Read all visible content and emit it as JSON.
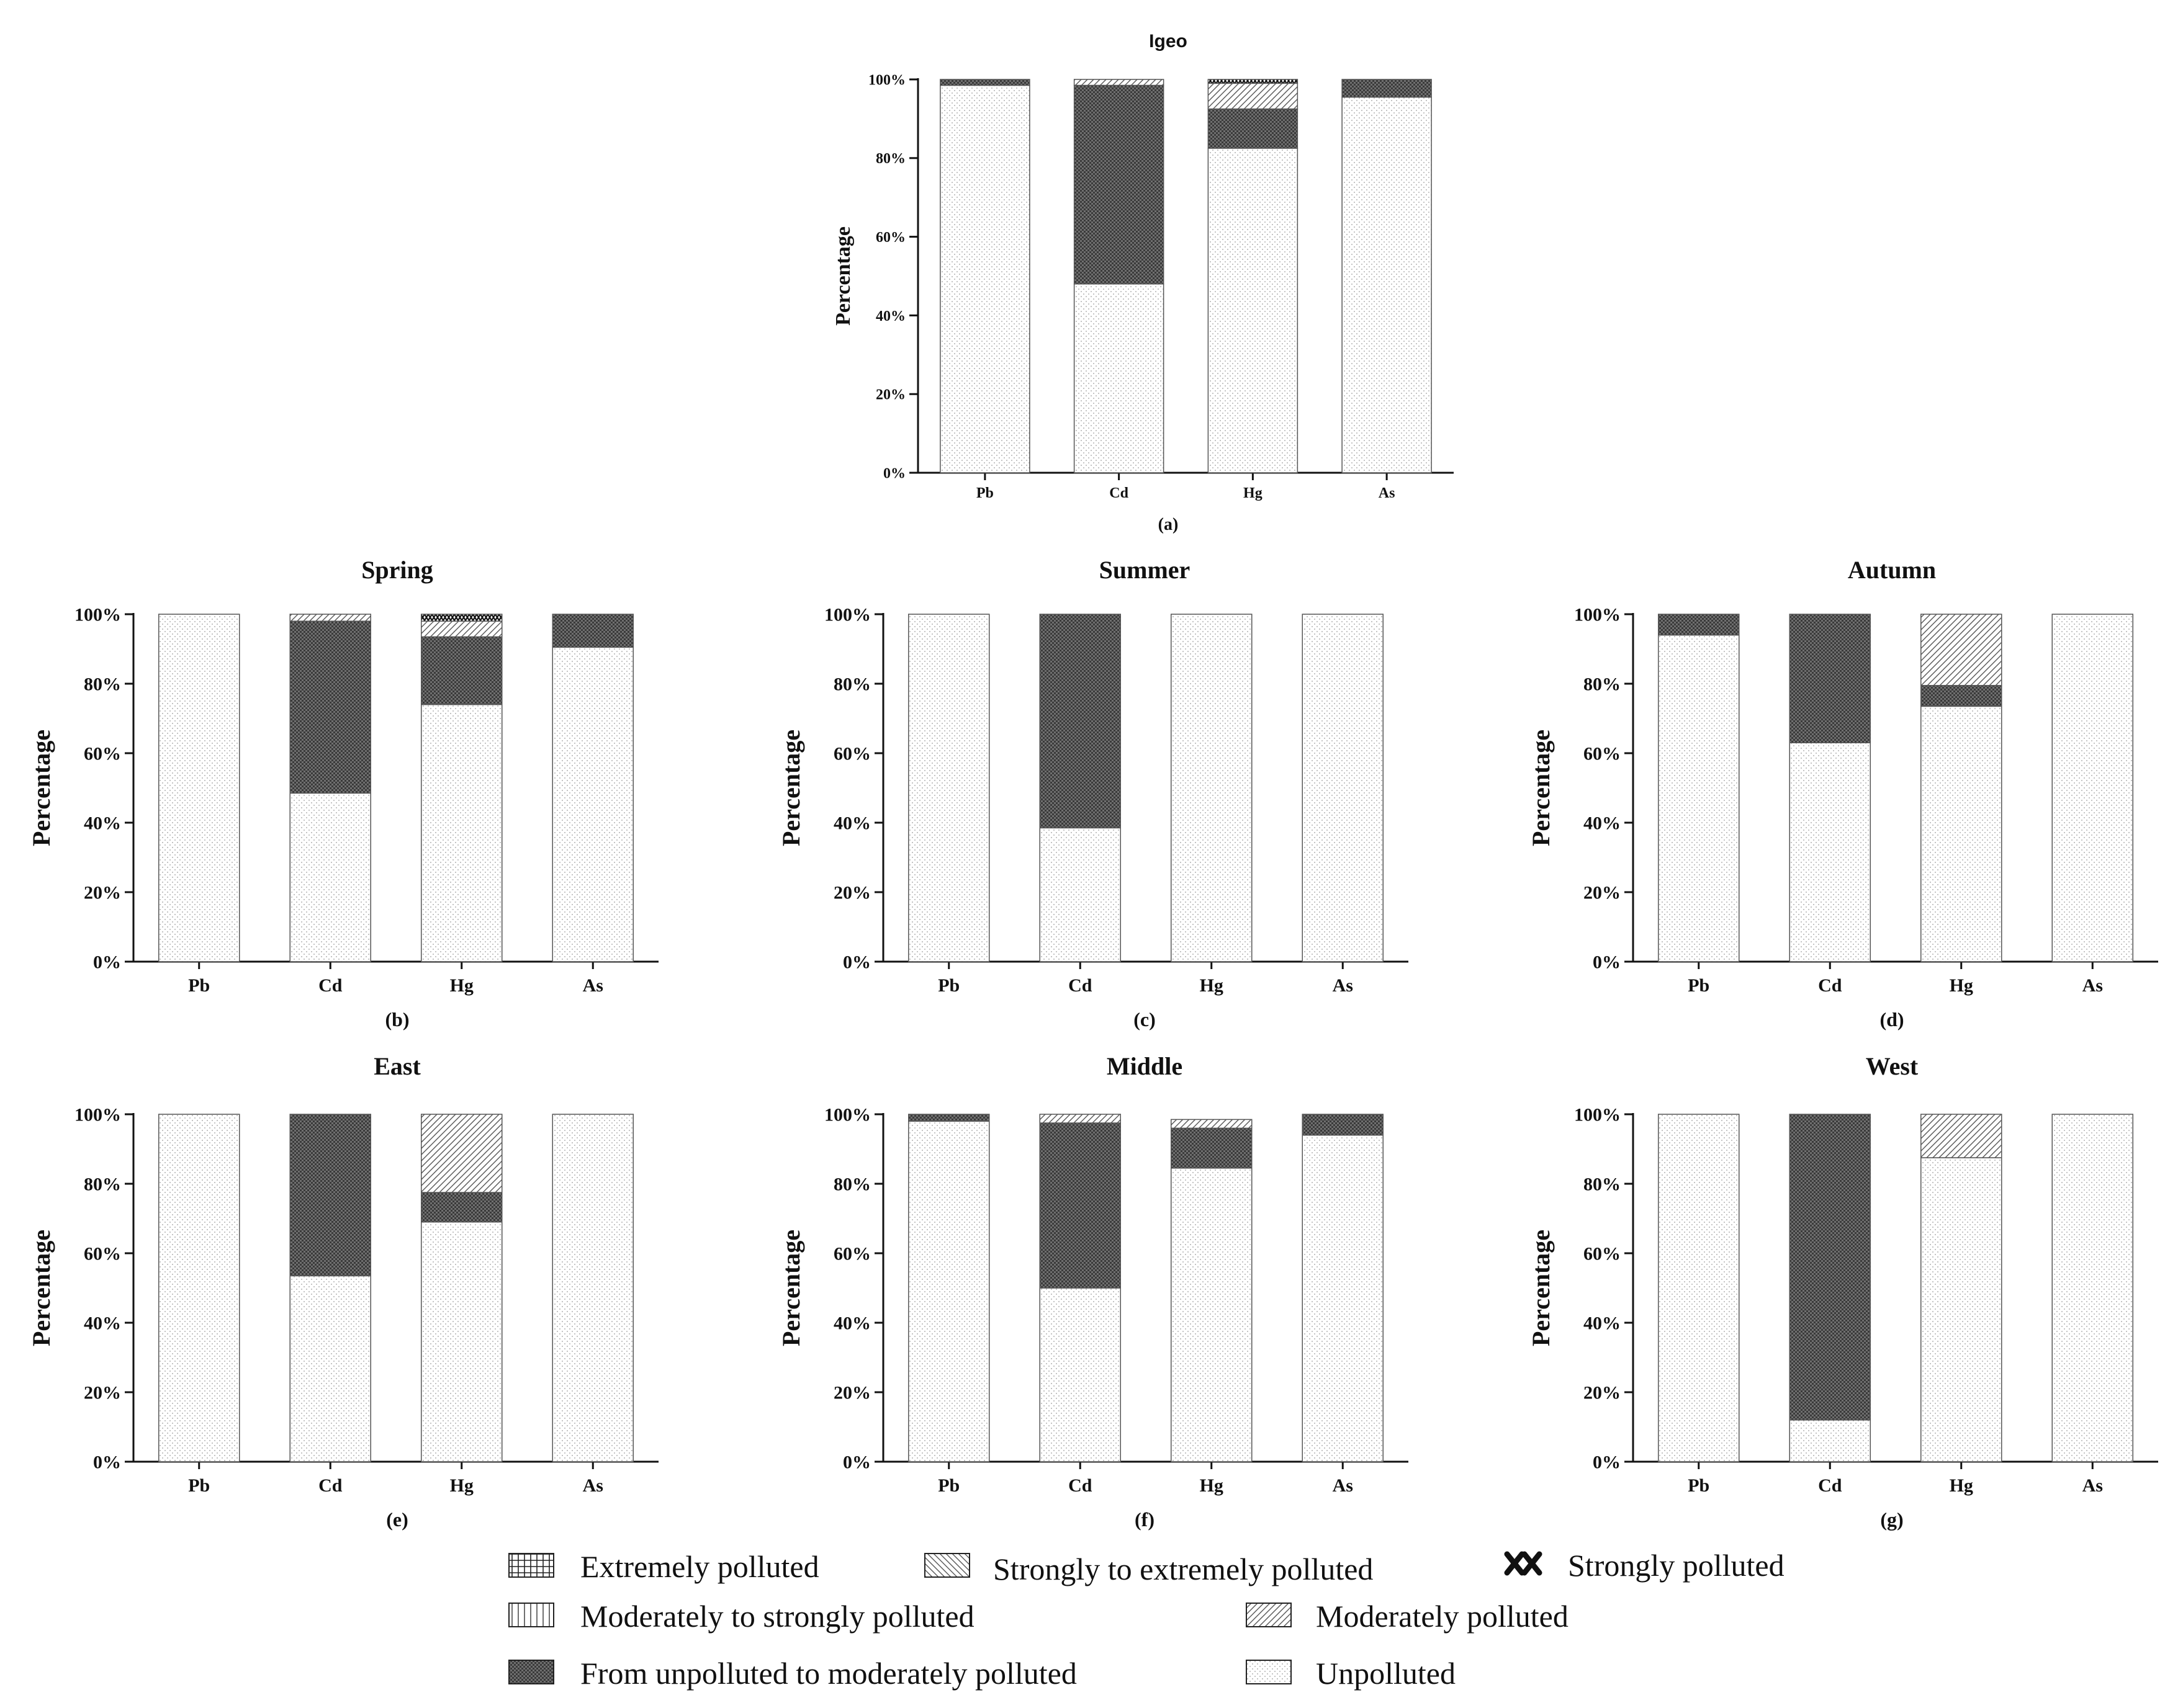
{
  "categories": [
    "Pb",
    "Cd",
    "Hg",
    "As"
  ],
  "ylabel": "Percentage",
  "yticks": [
    "0%",
    "20%",
    "40%",
    "60%",
    "80%",
    "100%"
  ],
  "legend": [
    {
      "key": "extreme",
      "label": "Extremely polluted"
    },
    {
      "key": "strong_extreme",
      "label": "Strongly to extremely polluted"
    },
    {
      "key": "strong",
      "label": "Strongly polluted"
    },
    {
      "key": "mod_strong",
      "label": "Moderately to strongly polluted"
    },
    {
      "key": "moderate",
      "label": "Moderately polluted"
    },
    {
      "key": "unpol_mod",
      "label": "From unpolluted to moderately polluted"
    },
    {
      "key": "unpolluted",
      "label": "Unpolluted"
    }
  ],
  "chart_data": [
    {
      "type": "bar",
      "stacked": true,
      "title": "Igeo",
      "caption": "(a)",
      "ylabel": "Percentage",
      "ylim": [
        0,
        100
      ],
      "categories": [
        "Pb",
        "Cd",
        "Hg",
        "As"
      ],
      "series": [
        {
          "name": "Unpolluted",
          "values": [
            98.5,
            48,
            82.5,
            95.5
          ]
        },
        {
          "name": "From unpolluted to moderately polluted",
          "values": [
            1.5,
            50.5,
            10,
            4.5
          ]
        },
        {
          "name": "Moderately polluted",
          "values": [
            0,
            1.5,
            6.5,
            0
          ]
        },
        {
          "name": "Strongly polluted",
          "values": [
            0,
            0,
            1,
            0
          ]
        }
      ]
    },
    {
      "type": "bar",
      "stacked": true,
      "title": "Spring",
      "caption": "(b)",
      "ylabel": "Percentage",
      "ylim": [
        0,
        100
      ],
      "categories": [
        "Pb",
        "Cd",
        "Hg",
        "As"
      ],
      "series": [
        {
          "name": "Unpolluted",
          "values": [
            100,
            48.5,
            74,
            90.5
          ]
        },
        {
          "name": "From unpolluted to moderately polluted",
          "values": [
            0,
            49.5,
            19.5,
            9.5
          ]
        },
        {
          "name": "Moderately polluted",
          "values": [
            0,
            2,
            4.5,
            0
          ]
        },
        {
          "name": "Strongly polluted",
          "values": [
            0,
            0,
            2,
            0
          ]
        }
      ]
    },
    {
      "type": "bar",
      "stacked": true,
      "title": "Summer",
      "caption": "(c)",
      "ylabel": "Percentage",
      "ylim": [
        0,
        100
      ],
      "categories": [
        "Pb",
        "Cd",
        "Hg",
        "As"
      ],
      "series": [
        {
          "name": "Unpolluted",
          "values": [
            100,
            38.5,
            100,
            100
          ]
        },
        {
          "name": "From unpolluted to moderately polluted",
          "values": [
            0,
            61.5,
            0,
            0
          ]
        }
      ]
    },
    {
      "type": "bar",
      "stacked": true,
      "title": "Autumn",
      "caption": "(d)",
      "ylabel": "Percentage",
      "ylim": [
        0,
        100
      ],
      "categories": [
        "Pb",
        "Cd",
        "Hg",
        "As"
      ],
      "series": [
        {
          "name": "Unpolluted",
          "values": [
            94,
            63,
            73.5,
            100
          ]
        },
        {
          "name": "From unpolluted to moderately polluted",
          "values": [
            6,
            37,
            6,
            0
          ]
        },
        {
          "name": "Moderately polluted",
          "values": [
            0,
            0,
            20.5,
            0
          ]
        }
      ]
    },
    {
      "type": "bar",
      "stacked": true,
      "title": "East",
      "caption": "(e)",
      "ylabel": "Percentage",
      "ylim": [
        0,
        100
      ],
      "categories": [
        "Pb",
        "Cd",
        "Hg",
        "As"
      ],
      "series": [
        {
          "name": "Unpolluted",
          "values": [
            100,
            53.5,
            69,
            100
          ]
        },
        {
          "name": "From unpolluted to moderately polluted",
          "values": [
            0,
            46.5,
            8.5,
            0
          ]
        },
        {
          "name": "Moderately polluted",
          "values": [
            0,
            0,
            22.5,
            0
          ]
        }
      ]
    },
    {
      "type": "bar",
      "stacked": true,
      "title": "Middle",
      "caption": "(f)",
      "ylabel": "Percentage",
      "ylim": [
        0,
        100
      ],
      "categories": [
        "Pb",
        "Cd",
        "Hg",
        "As"
      ],
      "series": [
        {
          "name": "Unpolluted",
          "values": [
            98,
            50,
            84.5,
            94
          ]
        },
        {
          "name": "From unpolluted to moderately polluted",
          "values": [
            2,
            47.5,
            11.5,
            6
          ]
        },
        {
          "name": "Moderately polluted",
          "values": [
            0,
            2.5,
            2.5,
            0
          ]
        }
      ]
    },
    {
      "type": "bar",
      "stacked": true,
      "title": "West",
      "caption": "(g)",
      "ylabel": "Percentage",
      "ylim": [
        0,
        100
      ],
      "categories": [
        "Pb",
        "Cd",
        "Hg",
        "As"
      ],
      "series": [
        {
          "name": "Unpolluted",
          "values": [
            100,
            12,
            87.5,
            100
          ]
        },
        {
          "name": "From unpolluted to moderately polluted",
          "values": [
            0,
            88,
            0,
            0
          ]
        },
        {
          "name": "Moderately polluted",
          "values": [
            0,
            0,
            12.5,
            0
          ]
        }
      ]
    }
  ]
}
